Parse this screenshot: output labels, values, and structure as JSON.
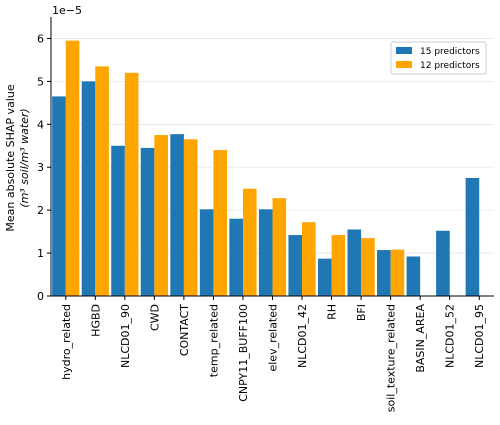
{
  "chart_data": {
    "type": "bar",
    "scale_label": "1e−5",
    "ylabel_line1": "Mean absolute SHAP value",
    "ylabel_line2": "(m³ soil/m³ water)",
    "ylim": [
      0,
      6.5
    ],
    "yticks": [
      "0",
      "1",
      "2",
      "3",
      "4",
      "5",
      "6"
    ],
    "grid": "horizontal",
    "legend_position": "top-right",
    "categories": [
      "hydro_related",
      "HGBD",
      "NLCD01_90",
      "CWD",
      "CONTACT",
      "temp_related",
      "CNPY11_BUFF100",
      "elev_related",
      "NLCD01_42",
      "RH",
      "BFI",
      "soil_texture_related",
      "BASIN_AREA",
      "NLCD01_52",
      "NLCD01_95"
    ],
    "series": [
      {
        "name": "15 predictors",
        "color": "#1f77b4",
        "values": [
          4.65,
          5.0,
          3.5,
          3.45,
          3.77,
          2.02,
          1.8,
          2.02,
          1.42,
          0.87,
          1.55,
          1.07,
          0.92,
          1.52,
          2.75
        ]
      },
      {
        "name": "12 predictors",
        "color": "#ffa500",
        "values": [
          5.95,
          5.35,
          5.2,
          3.75,
          3.65,
          3.4,
          2.5,
          2.28,
          1.72,
          1.42,
          1.35,
          1.08,
          null,
          null,
          null
        ]
      }
    ]
  }
}
